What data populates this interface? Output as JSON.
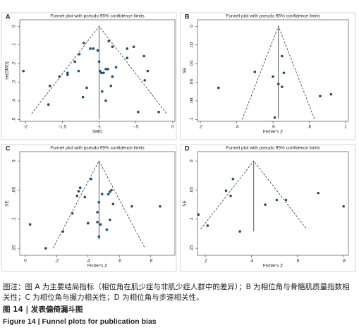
{
  "chart_data": [
    {
      "type": "scatter",
      "panel": "A",
      "title": "Funnel plot with pseudo 95% confidence limits",
      "xlabel": "SMD",
      "ylabel": "se(SMD)",
      "y_reversed": true,
      "color": "#1f4e6e",
      "x": [
        -2.03,
        -1.67,
        -1.69,
        -1.54,
        -1.43,
        -1.43,
        -1.28,
        -1.33,
        -1.27,
        -1.21,
        -1.17,
        -1.12,
        -1.08,
        -1.02,
        -1.0,
        -0.99,
        -0.97,
        -0.94,
        -0.91,
        -0.88,
        -0.96,
        -0.91,
        -0.87,
        -0.82,
        -0.82,
        -0.77,
        -0.84,
        -0.62,
        -0.53,
        -0.62,
        -0.39,
        -0.34,
        -0.38,
        -0.47,
        -0.19,
        -1.22
      ],
      "values": [
        0.24,
        0.32,
        0.42,
        0.27,
        0.25,
        0.26,
        0.24,
        0.19,
        0.15,
        0.09,
        0.33,
        0.12,
        0.12,
        0.13,
        0.19,
        0.24,
        0.25,
        0.25,
        0.23,
        0.23,
        0.35,
        0.4,
        0.08,
        0.11,
        0.27,
        0.22,
        0.32,
        0.12,
        0.11,
        0.17,
        0.16,
        0.24,
        0.29,
        0.46,
        0.46,
        0.38
      ],
      "ci_lines": {
        "x": [
          -1.92,
          -1.0,
          -0.08
        ],
        "y": [
          0.47,
          0,
          0.47
        ]
      },
      "pooled_line": {
        "x": [
          -1.0,
          -1.0
        ],
        "y": [
          0,
          0.5
        ]
      },
      "xlim": [
        -2.08,
        0.03
      ],
      "ylim": [
        -0.035,
        0.51
      ],
      "xticks": [
        -2,
        -1.5,
        -1,
        {
          "value": -0.5,
          "label": "-.5"
        },
        0
      ],
      "yticks": [
        0,
        {
          "value": 0.1,
          "label": ".1"
        },
        {
          "value": 0.2,
          "label": ".2"
        },
        {
          "value": 0.3,
          "label": ".3"
        },
        {
          "value": 0.4,
          "label": ".4"
        },
        {
          "value": 0.5,
          "label": ".5"
        }
      ]
    },
    {
      "type": "scatter",
      "panel": "B",
      "title": "Funnel plot with pseudo 95% confidence limits",
      "xlabel": "Fisher's Z",
      "ylabel": "SE",
      "y_reversed": true,
      "color": "#1f4e6e",
      "x": [
        0.3,
        0.5,
        0.6,
        0.63,
        0.65,
        0.66,
        0.65,
        0.61,
        0.86,
        0.92
      ],
      "values": [
        0.066,
        0.049,
        0.054,
        0.062,
        0.032,
        0.05,
        0.065,
        0.098,
        0.075,
        0.073
      ],
      "ci_lines": {
        "x": [
          0.43,
          0.63,
          0.83
        ],
        "y": [
          0.1,
          0,
          0.1
        ]
      },
      "pooled_line": {
        "x": [
          0.63,
          0.63
        ],
        "y": [
          0,
          0.099
        ]
      },
      "xlim": [
        0.184,
        1.016
      ],
      "ylim": [
        -0.007,
        0.102
      ],
      "xticks": [
        {
          "value": 0.2,
          "label": ".2"
        },
        {
          "value": 0.4,
          "label": ".4"
        },
        {
          "value": 0.6,
          "label": ".6"
        },
        {
          "value": 0.8,
          "label": ".8"
        },
        1
      ],
      "yticks": [
        0,
        {
          "value": 0.02,
          "label": ".02"
        },
        {
          "value": 0.04,
          "label": ".04"
        },
        {
          "value": 0.06,
          "label": ".06"
        },
        {
          "value": 0.08,
          "label": ".08"
        },
        {
          "value": 0.1,
          "label": ".1"
        }
      ]
    },
    {
      "type": "scatter",
      "panel": "C",
      "title": "Funnel plot with pseudo 95% confidence limits",
      "xlabel": "Fisher's Z",
      "ylabel": "SE",
      "y_reversed": true,
      "color": "#1f4e6e",
      "x": [
        0.03,
        0.13,
        0.24,
        0.3,
        0.33,
        0.34,
        0.35,
        0.38,
        0.4,
        0.42,
        0.46,
        0.46,
        0.47,
        0.47,
        0.48,
        0.49,
        0.53,
        0.52,
        0.54,
        0.55,
        0.56,
        0.54,
        0.68,
        0.86
      ],
      "values": [
        0.109,
        0.15,
        0.121,
        0.09,
        0.06,
        0.052,
        0.046,
        0.062,
        0.107,
        0.031,
        0.105,
        0.088,
        0.071,
        0.13,
        0.109,
        0.057,
        0.057,
        0.118,
        0.053,
        0.05,
        0.074,
        0.101,
        0.078,
        0.078
      ],
      "ci_lines": {
        "x": [
          0.176,
          0.47,
          0.764
        ],
        "y": [
          0.15,
          0,
          0.15
        ]
      },
      "pooled_line": {
        "x": [
          0.47,
          0.47
        ],
        "y": [
          0,
          0.135
        ]
      },
      "xlim": [
        -0.036,
        0.955
      ],
      "ylim": [
        -0.016,
        0.162
      ],
      "xticks": [
        0,
        {
          "value": 0.2,
          "label": ".2"
        },
        {
          "value": 0.4,
          "label": ".4"
        },
        {
          "value": 0.6,
          "label": ".6"
        },
        {
          "value": 0.8,
          "label": ".8"
        }
      ],
      "yticks": [
        0,
        {
          "value": 0.05,
          "label": ".05"
        },
        {
          "value": 0.1,
          "label": ".1"
        },
        {
          "value": 0.15,
          "label": ".15"
        }
      ]
    },
    {
      "type": "scatter",
      "panel": "D",
      "title": "Funnel plot with pseudo 95% confidence limits",
      "xlabel": "Fisher's Z",
      "ylabel": "SE",
      "y_reversed": true,
      "color": "#1f4e6e",
      "x": [
        0.17,
        0.21,
        0.29,
        0.31,
        0.32,
        0.35,
        0.46,
        0.51,
        0.55,
        0.69,
        0.8
      ],
      "values": [
        0.092,
        0.111,
        0.051,
        0.06,
        0.031,
        0.121,
        0.075,
        0.067,
        0.067,
        0.055,
        0.078
      ],
      "ci_lines": {
        "x": [
          0.18,
          0.41,
          0.64
        ],
        "y": [
          0.117,
          0,
          0.117
        ]
      },
      "pooled_line": {
        "x": [
          0.41,
          0.41
        ],
        "y": [
          0,
          0.121
        ]
      },
      "xlim": [
        0.166,
        0.821
      ],
      "ylim": [
        -0.016,
        0.162
      ],
      "xticks": [
        {
          "value": 0.2,
          "label": ".2"
        },
        {
          "value": 0.4,
          "label": ".4"
        },
        {
          "value": 0.6,
          "label": ".6"
        },
        {
          "value": 0.8,
          "label": ".8"
        }
      ],
      "yticks": [
        0,
        {
          "value": 0.05,
          "label": ".05"
        },
        {
          "value": 0.1,
          "label": ".1"
        },
        {
          "value": 0.15,
          "label": ".15"
        }
      ]
    }
  ],
  "caption": {
    "note": "图注：图 A 为主要结局指标（相位角在肌少症与非肌少症人群中的差异）；B 为相位角与骨骼肌质量指数相关性；C 为相位角与握力相关性；D 为相位角与步速相关性。",
    "title_cn": "图 14 | 发表偏倚漏斗图",
    "title_en": "Figure 14 | Funnel plots for publication bias"
  }
}
